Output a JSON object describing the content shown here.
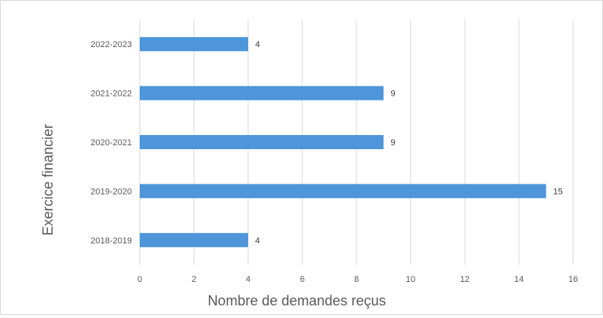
{
  "chart_data": {
    "type": "bar",
    "orientation": "horizontal",
    "categories": [
      "2022-2023",
      "2021-2022",
      "2020-2021",
      "2019-2020",
      "2018-2019"
    ],
    "values": [
      4,
      9,
      9,
      15,
      4
    ],
    "data_labels": [
      "4",
      "9",
      "9",
      "15",
      "4"
    ],
    "xlabel": "Nombre de demandes reçus",
    "ylabel": "Exercice financier",
    "xlim": [
      0,
      16
    ],
    "x_ticks": [
      0,
      2,
      4,
      6,
      8,
      10,
      12,
      14,
      16
    ],
    "grid": "vertical",
    "legend": "none",
    "bar_color": "#4e95d9"
  }
}
